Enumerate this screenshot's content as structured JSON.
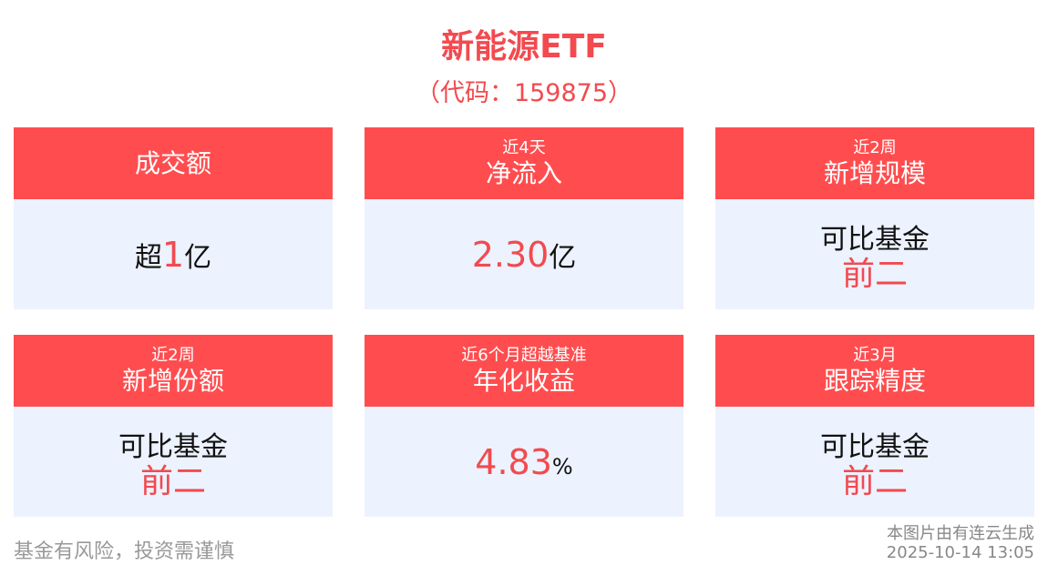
{
  "title": "新能源ETF",
  "code": "（代码：159875）",
  "cards": [
    {
      "sub": "",
      "main": "成交额",
      "prefix": "超",
      "value": "1",
      "unit": "亿"
    },
    {
      "sub": "近4天",
      "main": "净流入",
      "prefix": "",
      "value": "2.30",
      "unit": "亿"
    },
    {
      "sub": "近2周",
      "main": "新增规模",
      "text": "可比基金",
      "rank": "前二"
    },
    {
      "sub": "近2周",
      "main": "新增份额",
      "text": "可比基金",
      "rank": "前二"
    },
    {
      "sub": "近6个月超越基准",
      "main": "年化收益",
      "prefix": "",
      "value": "4.83",
      "unit": "%"
    },
    {
      "sub": "近3月",
      "main": "跟踪精度",
      "text": "可比基金",
      "rank": "前二"
    }
  ],
  "footer": {
    "disclaimer": "基金有风险，投资需谨慎",
    "source": "本图片由有连云生成",
    "timestamp": "2025-10-14 13:05"
  },
  "colors": {
    "accent": "#ff4d4f",
    "card_bg": "#ecf2fe"
  }
}
